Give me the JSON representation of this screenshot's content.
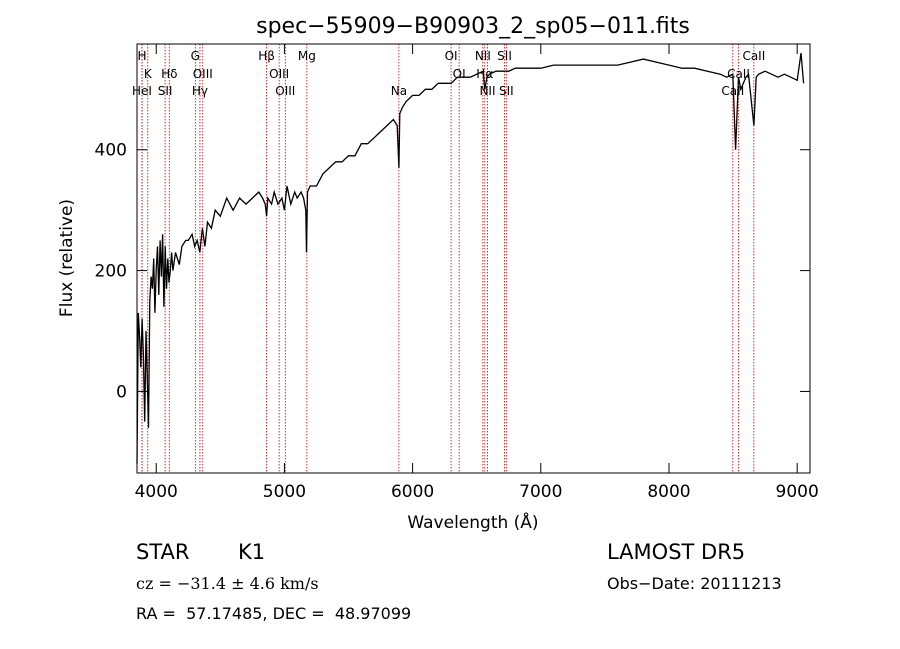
{
  "chart_data": {
    "type": "line",
    "title": "spec−55909−B90903_2_sp05−011.fits",
    "xlabel": "Wavelength (Å)",
    "ylabel": "Flux (relative)",
    "xlim": [
      3850,
      9100
    ],
    "ylim": [
      -135,
      575
    ],
    "x_ticks": [
      4000,
      5000,
      6000,
      7000,
      8000,
      9000
    ],
    "y_ticks": [
      0,
      200,
      400
    ],
    "grid": false,
    "series": [
      {
        "x": [
          3850,
          3860,
          3870,
          3880,
          3890,
          3900,
          3910,
          3920,
          3930,
          3940,
          3950,
          3960,
          3970,
          3980,
          3990,
          4000,
          4010,
          4020,
          4030,
          4040,
          4050,
          4060,
          4070,
          4080,
          4090,
          4100,
          4110,
          4120,
          4130,
          4150,
          4180,
          4200,
          4230,
          4250,
          4280,
          4300,
          4320,
          4340,
          4360,
          4380,
          4400,
          4430,
          4460,
          4500,
          4550,
          4600,
          4650,
          4700,
          4750,
          4800,
          4830,
          4850,
          4861,
          4870,
          4900,
          4920,
          4950,
          4980,
          5000,
          5020,
          5050,
          5080,
          5100,
          5130,
          5150,
          5167,
          5172,
          5180,
          5200,
          5250,
          5300,
          5350,
          5400,
          5450,
          5500,
          5550,
          5600,
          5650,
          5700,
          5750,
          5800,
          5850,
          5880,
          5893,
          5900,
          5920,
          5950,
          6000,
          6050,
          6100,
          6150,
          6200,
          6250,
          6300,
          6350,
          6400,
          6450,
          6500,
          6550,
          6563,
          6580,
          6600,
          6650,
          6700,
          6750,
          6800,
          6850,
          6900,
          6950,
          7000,
          7100,
          7200,
          7300,
          7400,
          7500,
          7600,
          7700,
          7800,
          7900,
          8000,
          8100,
          8200,
          8300,
          8400,
          8450,
          8498,
          8520,
          8542,
          8560,
          8600,
          8620,
          8662,
          8680,
          8700,
          8750,
          8800,
          8850,
          8900,
          8950,
          9000,
          9030,
          9050
        ],
        "y": [
          -120,
          130,
          90,
          40,
          120,
          60,
          -50,
          100,
          20,
          -60,
          150,
          190,
          170,
          220,
          130,
          200,
          240,
          160,
          250,
          190,
          260,
          140,
          240,
          170,
          220,
          180,
          200,
          230,
          200,
          230,
          210,
          240,
          250,
          250,
          260,
          240,
          250,
          230,
          270,
          240,
          280,
          270,
          300,
          290,
          320,
          300,
          320,
          310,
          320,
          330,
          320,
          310,
          290,
          320,
          310,
          330,
          310,
          320,
          300,
          340,
          310,
          330,
          320,
          330,
          320,
          300,
          230,
          330,
          340,
          340,
          360,
          370,
          380,
          380,
          390,
          390,
          410,
          410,
          420,
          430,
          440,
          450,
          440,
          370,
          460,
          470,
          480,
          490,
          490,
          500,
          500,
          510,
          510,
          510,
          520,
          520,
          520,
          525,
          530,
          500,
          520,
          525,
          530,
          530,
          530,
          535,
          535,
          535,
          535,
          535,
          540,
          540,
          540,
          540,
          540,
          540,
          545,
          550,
          545,
          540,
          535,
          535,
          530,
          525,
          520,
          525,
          400,
          520,
          500,
          520,
          525,
          440,
          520,
          525,
          530,
          525,
          520,
          525,
          520,
          515,
          560,
          510
        ]
      }
    ],
    "lines": [
      {
        "label": "H",
        "x": 3889,
        "row": 1
      },
      {
        "label": "K",
        "x": 3934,
        "row": 2
      },
      {
        "label": "HeI",
        "x": 3889,
        "row": 3
      },
      {
        "label": "Hδ",
        "x": 4102,
        "row": 2
      },
      {
        "label": "SII",
        "x": 4069,
        "row": 3
      },
      {
        "label": "G",
        "x": 4305,
        "row": 1
      },
      {
        "label": "OIII",
        "x": 4363,
        "row": 2
      },
      {
        "label": "Hγ",
        "x": 4341,
        "row": 3
      },
      {
        "label": "Hβ",
        "x": 4861,
        "row": 1
      },
      {
        "label": "OIII",
        "x": 4959,
        "row": 2
      },
      {
        "label": "OIII",
        "x": 5007,
        "row": 3
      },
      {
        "label": "Mg",
        "x": 5175,
        "row": 1
      },
      {
        "label": "Na",
        "x": 5893,
        "row": 3
      },
      {
        "label": "OI",
        "x": 6300,
        "row": 1
      },
      {
        "label": "OI",
        "x": 6363,
        "row": 2
      },
      {
        "label": "NII",
        "x": 6548,
        "row": 1
      },
      {
        "label": "SII",
        "x": 6717,
        "row": 1
      },
      {
        "label": "Hα",
        "x": 6563,
        "row": 2
      },
      {
        "label": "NII",
        "x": 6584,
        "row": 3
      },
      {
        "label": "SII",
        "x": 6731,
        "row": 3
      },
      {
        "label": "CaII",
        "x": 8662,
        "row": 1
      },
      {
        "label": "CaII",
        "x": 8542,
        "row": 2
      },
      {
        "label": "CaII",
        "x": 8498,
        "row": 3
      }
    ]
  },
  "info": {
    "object_class": "STAR",
    "subclass": "K1",
    "cz": "cz = −31.4 ± 4.6 km/s",
    "coords": "RA =  57.17485, DEC =  48.97099",
    "survey": "LAMOST DR5",
    "obs_date": "Obs−Date: 20111213"
  },
  "colors": {
    "line_marker": "#cc0000",
    "spectrum": "#000000"
  }
}
